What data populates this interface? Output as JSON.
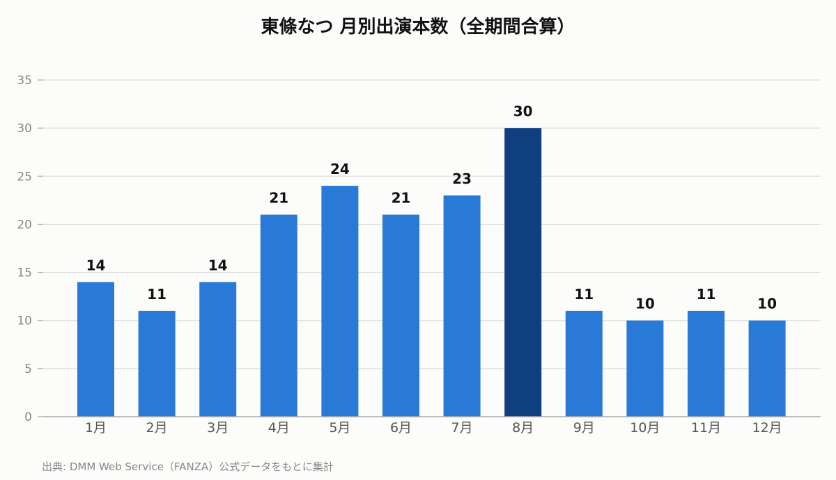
{
  "chart_data": {
    "type": "bar",
    "title": "東條なつ 月別出演本数（全期間合算）",
    "categories": [
      "1月",
      "2月",
      "3月",
      "4月",
      "5月",
      "6月",
      "7月",
      "8月",
      "9月",
      "10月",
      "11月",
      "12月"
    ],
    "values": [
      14,
      11,
      14,
      21,
      24,
      21,
      23,
      30,
      11,
      10,
      11,
      10
    ],
    "xlabel": "",
    "ylabel": "",
    "ylim": [
      0,
      35
    ],
    "yticks": [
      0,
      5,
      10,
      15,
      20,
      25,
      30,
      35
    ],
    "grid": true,
    "legend": "none",
    "data_labels": true,
    "highlight_index": 7,
    "colors": {
      "bar": "#2979d6",
      "highlight": "#0f3f80",
      "grid": "#dddddd",
      "axis": "#aaaaaa"
    }
  },
  "source_note": "出典: DMM Web Service（FANZA）公式データをもとに集計"
}
